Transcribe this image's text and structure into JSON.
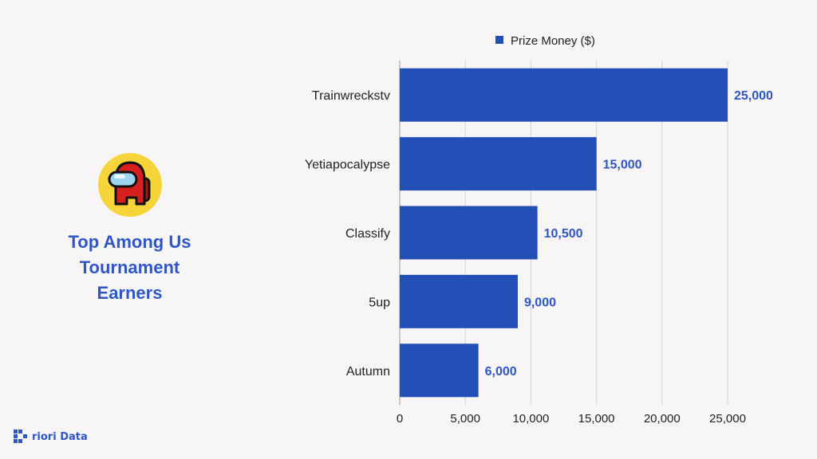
{
  "title": "Top Among Us\nTournament\nEarners",
  "brand": {
    "name": "riori Data",
    "icon": "priori-data-logo-icon"
  },
  "avatar": {
    "icon": "among-us-crewmate-icon"
  },
  "colors": {
    "bar": "#2350b8",
    "accent": "#2f56c6",
    "grid": "#d4d4d4",
    "avatar_bg": "#f5d53a",
    "crewmate": "#d61f1f"
  },
  "chart_data": {
    "type": "bar",
    "orientation": "horizontal",
    "categories": [
      "Trainwreckstv",
      "Yetiapocalypse",
      "Classify",
      "5up",
      "Autumn"
    ],
    "series": [
      {
        "name": "Prize Money ($)",
        "values": [
          25000,
          15000,
          10500,
          9000,
          6000
        ]
      }
    ],
    "data_labels": [
      "25,000",
      "15,000",
      "10,500",
      "9,000",
      "6,000"
    ],
    "x_ticks": [
      0,
      5000,
      10000,
      15000,
      20000,
      25000
    ],
    "x_tick_labels": [
      "0",
      "5,000",
      "10,000",
      "15,000",
      "20,000",
      "25,000"
    ],
    "xlim": [
      0,
      25000
    ],
    "grid": true,
    "legend": "top"
  }
}
